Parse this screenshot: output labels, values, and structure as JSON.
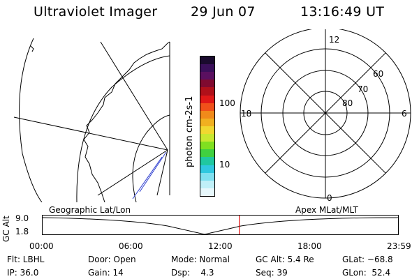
{
  "header": {
    "instrument": "Ultraviolet Imager",
    "date": "29 Jun 07",
    "time": "13:16:49 UT"
  },
  "colorbar": {
    "unit_label": "photon cm-2s-1",
    "ticks": [
      "100",
      "10"
    ],
    "colors": [
      "#1a0a2e",
      "#3a0f5a",
      "#5a1060",
      "#800a30",
      "#b0101a",
      "#e01818",
      "#f0501a",
      "#f08a1a",
      "#f0b020",
      "#f0d830",
      "#c8e830",
      "#80e020",
      "#40d040",
      "#20c8a0",
      "#30c8e0",
      "#80e0f0",
      "#c0f0f8",
      "#e8f8fc"
    ]
  },
  "geo_map": {
    "label": "Geographic Lat/Lon"
  },
  "polar_plot": {
    "label": "Apex MLat/MLT",
    "mlt_labels": {
      "top": "12",
      "right": "6",
      "left": "18",
      "bottom": "0"
    },
    "lat_labels": [
      "60",
      "70",
      "80"
    ]
  },
  "altitude_plot": {
    "ylabel": "GC Alt",
    "yticks": [
      "9.0",
      "1.8"
    ],
    "xticks": [
      "00:00",
      "06:00",
      "12:00",
      "18:00",
      "23:59"
    ],
    "current_time_hours": 13.28
  },
  "footer": {
    "filter": "Flt: LBHL",
    "door": "Door: Open",
    "mode": "Mode: Normal",
    "gc_alt": "GC Alt: 5.4 Re",
    "glat": "GLat: −68.8",
    "ip": "IP: 36.0",
    "gain": "Gain: 14",
    "dsp": "Dsp:    4.3",
    "seq": "Seq: 39",
    "glon": "GLon:  52.4"
  }
}
